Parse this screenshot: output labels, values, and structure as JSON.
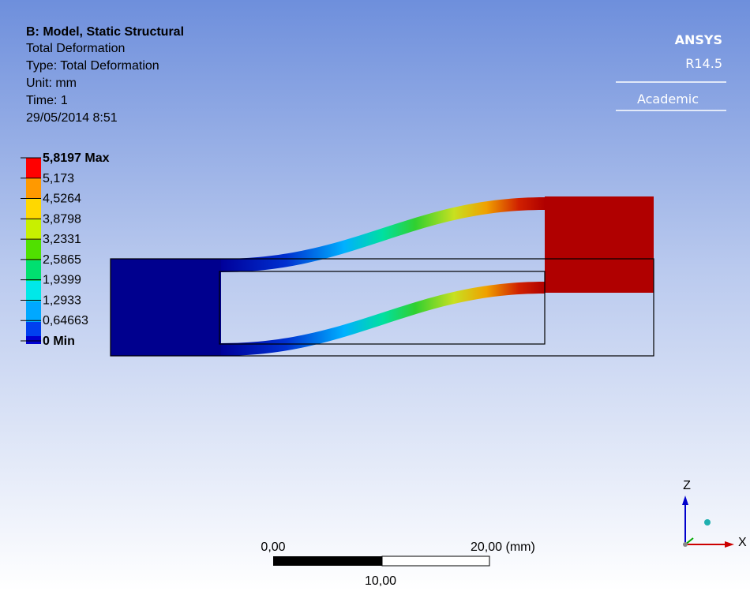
{
  "header": {
    "title": "B: Model, Static Structural",
    "lines": [
      "Total Deformation",
      "Type: Total Deformation",
      "Unit: mm",
      "Time: 1",
      "29/05/2014 8:51"
    ]
  },
  "logo": {
    "brand": "ANSYS",
    "version": "R14.5",
    "edition": "Academic"
  },
  "legend": {
    "labels": [
      "5,8197 Max",
      "5,173",
      "4,5264",
      "3,8798",
      "3,2331",
      "2,5865",
      "1,9399",
      "1,2933",
      "0,64663",
      "0 Min"
    ]
  },
  "scale_bar": {
    "start": "0,00",
    "end": "20,00 (mm)",
    "middle": "10,00"
  },
  "triad": {
    "z": "Z",
    "x": "X"
  }
}
